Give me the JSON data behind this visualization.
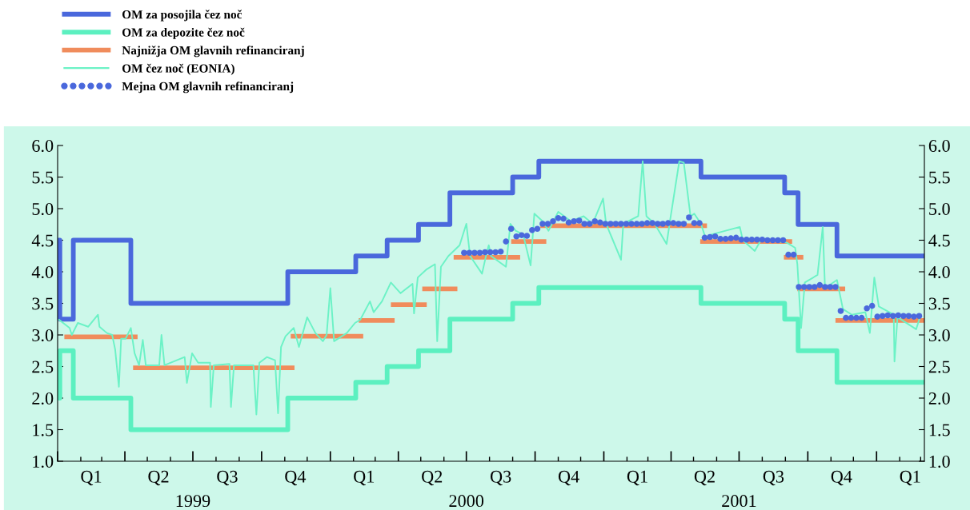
{
  "chart_data": {
    "type": "line",
    "legend": "top left",
    "xlim": [
      "1999-01-01",
      "2002-03-06"
    ],
    "xticks": [
      {
        "value": "1999-01-01",
        "label": null
      },
      {
        "value": "1999-02-01",
        "label": null
      },
      {
        "value": "1999-03-01",
        "label": null
      },
      {
        "value": "1999-04-01",
        "label": null
      },
      {
        "value": "1999-05-01",
        "label": null
      },
      {
        "value": "1999-06-01",
        "label": null
      },
      {
        "value": "1999-07-01",
        "label": null
      },
      {
        "value": "1999-08-01",
        "label": null
      },
      {
        "value": "1999-09-01",
        "label": null
      },
      {
        "value": "1999-10-01",
        "label": null
      },
      {
        "value": "1999-11-01",
        "label": null
      },
      {
        "value": "1999-12-01",
        "label": null
      },
      {
        "value": "2000-01-01",
        "label": null
      },
      {
        "value": "2000-02-01",
        "label": null
      },
      {
        "value": "2000-03-01",
        "label": null
      },
      {
        "value": "2000-04-01",
        "label": null
      },
      {
        "value": "2000-05-01",
        "label": null
      },
      {
        "value": "2000-06-01",
        "label": null
      },
      {
        "value": "2000-07-01",
        "label": null
      },
      {
        "value": "2000-08-01",
        "label": null
      },
      {
        "value": "2000-09-01",
        "label": null
      },
      {
        "value": "2000-10-01",
        "label": null
      },
      {
        "value": "2000-11-01",
        "label": null
      },
      {
        "value": "2000-12-01",
        "label": null
      },
      {
        "value": "2001-01-01",
        "label": null
      },
      {
        "value": "2001-02-01",
        "label": null
      },
      {
        "value": "2001-03-01",
        "label": null
      },
      {
        "value": "2001-04-01",
        "label": null
      },
      {
        "value": "2001-05-01",
        "label": null
      },
      {
        "value": "2001-06-01",
        "label": null
      },
      {
        "value": "2001-07-01",
        "label": null
      },
      {
        "value": "2001-08-01",
        "label": null
      },
      {
        "value": "2001-09-01",
        "label": null
      },
      {
        "value": "2001-10-01",
        "label": null
      },
      {
        "value": "2001-11-01",
        "label": null
      },
      {
        "value": "2001-12-01",
        "label": null
      },
      {
        "value": "2002-01-01",
        "label": null
      },
      {
        "value": "2002-02-01",
        "label": null
      },
      {
        "value": "2002-03-01",
        "label": null
      },
      {
        "value": "1999-02-15",
        "label": "Q1"
      },
      {
        "value": "1999-05-16",
        "label": "Q2"
      },
      {
        "value": "1999-08-16",
        "label": "Q3"
      },
      {
        "value": "1999-11-15",
        "label": "Q4"
      },
      {
        "value": "2000-02-15",
        "label": "Q1"
      },
      {
        "value": "2000-05-16",
        "label": "Q2"
      },
      {
        "value": "2000-08-16",
        "label": "Q3"
      },
      {
        "value": "2000-11-15",
        "label": "Q4"
      },
      {
        "value": "2001-02-15",
        "label": "Q1"
      },
      {
        "value": "2001-05-16",
        "label": "Q2"
      },
      {
        "value": "2001-08-16",
        "label": "Q3"
      },
      {
        "value": "2001-11-15",
        "label": "Q4"
      },
      {
        "value": "2002-02-15",
        "label": "Q1"
      }
    ],
    "ylim": [
      1,
      6
    ],
    "yticks": [
      {
        "value": 1,
        "label": "1.0"
      },
      {
        "value": 1.5,
        "label": "1.5"
      },
      {
        "value": 2,
        "label": "2.0"
      },
      {
        "value": 2.5,
        "label": "2.5"
      },
      {
        "value": 3,
        "label": "3.0"
      },
      {
        "value": 3.5,
        "label": "3.5"
      },
      {
        "value": 4,
        "label": "4.0"
      },
      {
        "value": 4.5,
        "label": "4.5"
      },
      {
        "value": 5,
        "label": "5.0"
      },
      {
        "value": 5.5,
        "label": "5.5"
      },
      {
        "value": 6,
        "label": "6.0"
      }
    ],
    "y2lim": [
      1,
      6
    ],
    "y2ticks": [
      {
        "value": 1,
        "label": "1.0"
      },
      {
        "value": 1.5,
        "label": "1.5"
      },
      {
        "value": 2,
        "label": "2.0"
      },
      {
        "value": 2.5,
        "label": "2.5"
      },
      {
        "value": 3,
        "label": "3.0"
      },
      {
        "value": 3.5,
        "label": "3.5"
      },
      {
        "value": 4,
        "label": "4.0"
      },
      {
        "value": 4.5,
        "label": "4.5"
      },
      {
        "value": 5,
        "label": "5.0"
      },
      {
        "value": 5.5,
        "label": "5.5"
      },
      {
        "value": 6,
        "label": "6.0"
      }
    ],
    "annotations": [
      "1999",
      "2000",
      "2001"
    ],
    "series": [
      {
        "name": "OM za posojila čez noč",
        "type": "step",
        "color": "#4a68dc",
        "x": [
          "1999-01-01",
          "1999-01-04",
          "1999-01-22",
          "1999-04-09",
          "1999-11-05",
          "2000-02-04",
          "2000-03-17",
          "2000-04-28",
          "2000-06-09",
          "2000-09-01",
          "2000-10-06",
          "2001-05-11",
          "2001-08-31",
          "2001-09-18",
          "2001-11-09",
          "2002-03-06"
        ],
        "values": [
          4.5,
          3.25,
          4.5,
          3.5,
          4.0,
          4.25,
          4.5,
          4.75,
          5.25,
          5.5,
          5.75,
          5.5,
          5.25,
          4.75,
          4.25,
          4.25
        ]
      },
      {
        "name": "OM za depozite čez noč",
        "type": "step",
        "color": "#5cf0c0",
        "x": [
          "1999-01-01",
          "1999-01-04",
          "1999-01-22",
          "1999-04-09",
          "1999-11-05",
          "2000-02-04",
          "2000-03-17",
          "2000-04-28",
          "2000-06-09",
          "2000-09-01",
          "2000-10-06",
          "2001-05-11",
          "2001-08-31",
          "2001-09-18",
          "2001-11-09",
          "2002-03-06"
        ],
        "values": [
          2.0,
          2.75,
          2.0,
          1.5,
          2.0,
          2.25,
          2.5,
          2.75,
          3.25,
          3.5,
          3.75,
          3.5,
          3.25,
          2.75,
          2.25,
          2.25
        ]
      },
      {
        "name": "Najnižja OM glavnih refinanciranj",
        "type": "step",
        "color": "#f08c5c",
        "x": [
          "1999-01-10",
          "1999-04-18"
        ],
        "values": [
          2.97,
          2.97
        ]
      },
      {
        "type": "step",
        "color": "#f08c5c",
        "x": [
          "1999-04-12",
          "1999-11-14"
        ],
        "values": [
          2.48,
          2.48
        ]
      },
      {
        "type": "step",
        "color": "#f08c5c",
        "x": [
          "1999-11-09",
          "2000-02-14"
        ],
        "values": [
          2.98,
          2.98
        ]
      },
      {
        "type": "step",
        "color": "#f08c5c",
        "x": [
          "2000-02-08",
          "2000-03-27"
        ],
        "values": [
          3.23,
          3.23
        ]
      },
      {
        "type": "step",
        "color": "#f08c5c",
        "x": [
          "2000-03-22",
          "2000-05-09"
        ],
        "values": [
          3.48,
          3.48
        ]
      },
      {
        "type": "step",
        "color": "#f08c5c",
        "x": [
          "2000-05-03",
          "2000-06-19"
        ],
        "values": [
          3.73,
          3.73
        ]
      },
      {
        "type": "step",
        "color": "#f08c5c",
        "x": [
          "2000-06-14",
          "2000-09-11"
        ],
        "values": [
          4.23,
          4.23
        ]
      },
      {
        "type": "step",
        "color": "#f08c5c",
        "x": [
          "2000-08-30",
          "2000-10-16"
        ],
        "values": [
          4.48,
          4.48
        ]
      },
      {
        "type": "step",
        "color": "#f08c5c",
        "x": [
          "2000-10-08",
          "2001-05-19"
        ],
        "values": [
          4.73,
          4.73
        ]
      },
      {
        "type": "step",
        "color": "#f08c5c",
        "x": [
          "2001-05-10",
          "2001-09-10"
        ],
        "values": [
          4.48,
          4.48
        ]
      },
      {
        "type": "step",
        "color": "#f08c5c",
        "x": [
          "2001-08-30",
          "2001-09-25"
        ],
        "values": [
          4.23,
          4.23
        ]
      },
      {
        "type": "step",
        "color": "#f08c5c",
        "x": [
          "2001-09-17",
          "2001-11-20"
        ],
        "values": [
          3.73,
          3.73
        ]
      },
      {
        "type": "step",
        "color": "#f08c5c",
        "x": [
          "2001-11-07",
          "2002-03-06"
        ],
        "values": [
          3.23,
          3.23
        ]
      },
      {
        "name": "OM čez noč (EONIA)",
        "type": "line",
        "color": "#6cf2c6",
        "x": [
          "1999-01-03",
          "1999-01-17",
          "1999-01-20",
          "1999-01-28",
          "1999-02-11",
          "1999-02-24",
          "1999-02-26",
          "1999-03-08",
          "1999-03-15",
          "1999-03-19",
          "1999-03-24",
          "1999-03-27",
          "1999-04-02",
          "1999-04-09",
          "1999-04-14",
          "1999-04-20",
          "1999-04-25",
          "1999-04-29",
          "1999-05-17",
          "1999-05-20",
          "1999-05-24",
          "1999-06-20",
          "1999-06-23",
          "1999-06-30",
          "1999-07-08",
          "1999-07-24",
          "1999-07-25",
          "1999-07-29",
          "1999-08-19",
          "1999-08-21",
          "1999-08-25",
          "1999-09-20",
          "1999-09-24",
          "1999-09-28",
          "1999-10-08",
          "1999-10-19",
          "1999-10-23",
          "1999-10-27",
          "1999-11-02",
          "1999-11-13",
          "1999-11-20",
          "1999-12-01",
          "1999-12-12",
          "1999-12-22",
          "1999-12-27",
          "2000-01-01",
          "2000-01-06",
          "2000-01-23",
          "2000-02-03",
          "2000-02-10",
          "2000-02-23",
          "2000-02-28",
          "2000-03-10",
          "2000-03-22",
          "2000-04-04",
          "2000-04-20",
          "2000-04-22",
          "2000-04-27",
          "2000-05-09",
          "2000-05-20",
          "2000-05-23",
          "2000-05-28",
          "2000-06-07",
          "2000-06-14",
          "2000-06-22",
          "2000-07-01",
          "2000-07-06",
          "2000-07-22",
          "2000-07-28",
          "2000-07-31",
          "2000-08-03",
          "2000-08-23",
          "2000-08-29",
          "2000-09-05",
          "2000-09-15",
          "2000-09-25",
          "2000-09-30",
          "2000-10-11",
          "2000-10-19",
          "2000-11-01",
          "2000-11-18",
          "2000-12-05",
          "2000-12-17",
          "2000-12-31",
          "2001-01-04",
          "2001-01-24",
          "2001-01-27",
          "2001-02-16",
          "2001-02-22",
          "2001-02-27",
          "2001-03-10",
          "2001-03-26",
          "2001-03-31",
          "2001-04-12",
          "2001-04-18",
          "2001-04-27",
          "2001-05-02",
          "2001-05-11",
          "2001-05-17",
          "2001-05-25",
          "2001-07-02",
          "2001-07-06",
          "2001-07-22",
          "2001-07-31",
          "2001-09-03",
          "2001-09-14",
          "2001-09-17",
          "2001-09-22",
          "2001-09-27",
          "2001-10-14",
          "2001-10-21",
          "2001-10-24",
          "2001-11-09",
          "2001-11-17",
          "2001-11-29",
          "2001-12-17",
          "2001-12-23",
          "2001-12-29",
          "2002-01-04",
          "2002-01-24",
          "2002-01-25",
          "2002-01-29",
          "2002-02-23",
          "2002-02-28"
        ],
        "values": [
          3.24,
          3.11,
          3.0,
          3.19,
          3.13,
          3.32,
          3.13,
          3.03,
          3.0,
          2.77,
          2.18,
          2.94,
          2.94,
          3.11,
          2.71,
          2.52,
          2.92,
          2.52,
          2.52,
          3.0,
          2.52,
          2.65,
          2.24,
          2.71,
          2.56,
          2.56,
          1.86,
          2.52,
          2.54,
          1.86,
          2.52,
          2.52,
          1.74,
          2.56,
          2.65,
          2.6,
          1.76,
          2.81,
          2.98,
          3.11,
          2.81,
          3.28,
          3.03,
          2.9,
          3.0,
          3.74,
          2.9,
          3.03,
          3.19,
          3.24,
          3.53,
          3.36,
          3.53,
          3.83,
          3.66,
          3.81,
          3.34,
          3.91,
          4.04,
          4.12,
          2.9,
          4.08,
          4.25,
          4.33,
          4.42,
          4.76,
          4.25,
          3.97,
          4.29,
          4.42,
          4.25,
          4.08,
          4.76,
          4.65,
          4.59,
          4.1,
          4.92,
          4.8,
          4.65,
          4.95,
          4.8,
          4.88,
          4.76,
          5.16,
          4.76,
          4.19,
          4.76,
          4.88,
          5.75,
          4.88,
          4.76,
          4.44,
          4.84,
          5.75,
          5.73,
          4.88,
          4.92,
          4.76,
          4.54,
          4.59,
          4.71,
          4.5,
          4.33,
          4.52,
          4.46,
          4.38,
          4.12,
          3.11,
          3.83,
          3.95,
          4.71,
          3.74,
          3.87,
          3.41,
          3.32,
          3.36,
          3.03,
          3.91,
          3.45,
          3.32,
          2.58,
          3.28,
          3.09,
          3.28
        ]
      },
      {
        "name": "Mejna OM glavnih refinanciranj",
        "type": "scatter",
        "marker": "circle",
        "color": "#4a68dc",
        "x": [
          "2000-06-28",
          "2000-07-05",
          "2000-07-12",
          "2000-07-19",
          "2000-07-26",
          "2000-08-02",
          "2000-08-09",
          "2000-08-16",
          "2000-08-23",
          "2000-08-30",
          "2000-09-06",
          "2000-09-13",
          "2000-09-20",
          "2000-09-27",
          "2000-10-04",
          "2000-10-11",
          "2000-10-18",
          "2000-10-25",
          "2000-11-01",
          "2000-11-08",
          "2000-11-15",
          "2000-11-22",
          "2000-11-29",
          "2000-12-06",
          "2000-12-13",
          "2000-12-20",
          "2000-12-27",
          "2001-01-03",
          "2001-01-10",
          "2001-01-17",
          "2001-01-24",
          "2001-01-31",
          "2001-02-07",
          "2001-02-14",
          "2001-02-21",
          "2001-02-28",
          "2001-03-07",
          "2001-03-14",
          "2001-03-21",
          "2001-03-28",
          "2001-04-04",
          "2001-04-11",
          "2001-04-18",
          "2001-04-25",
          "2001-05-02",
          "2001-05-09",
          "2001-05-16",
          "2001-05-23",
          "2001-05-30",
          "2001-06-06",
          "2001-06-13",
          "2001-06-20",
          "2001-06-27",
          "2001-07-04",
          "2001-07-11",
          "2001-07-18",
          "2001-07-25",
          "2001-08-01",
          "2001-08-08",
          "2001-08-15",
          "2001-08-22",
          "2001-08-29",
          "2001-09-05",
          "2001-09-12",
          "2001-09-19",
          "2001-09-26",
          "2001-10-03",
          "2001-10-10",
          "2001-10-17",
          "2001-10-24",
          "2001-10-31",
          "2001-11-07",
          "2001-11-14",
          "2001-11-21",
          "2001-11-28",
          "2001-12-05",
          "2001-12-12",
          "2001-12-19",
          "2001-12-26",
          "2002-01-02",
          "2002-01-09",
          "2002-01-16",
          "2002-01-23",
          "2002-01-30",
          "2002-02-06",
          "2002-02-13",
          "2002-02-20",
          "2002-02-27"
        ],
        "values": [
          4.3,
          4.3,
          4.3,
          4.3,
          4.31,
          4.31,
          4.31,
          4.32,
          4.48,
          4.68,
          4.56,
          4.58,
          4.57,
          4.66,
          4.68,
          4.76,
          4.76,
          4.8,
          4.85,
          4.84,
          4.78,
          4.8,
          4.81,
          4.76,
          4.76,
          4.8,
          4.78,
          4.76,
          4.76,
          4.76,
          4.76,
          4.76,
          4.76,
          4.76,
          4.76,
          4.77,
          4.77,
          4.76,
          4.76,
          4.77,
          4.77,
          4.76,
          4.76,
          4.86,
          4.77,
          4.77,
          4.54,
          4.55,
          4.56,
          4.52,
          4.52,
          4.53,
          4.54,
          4.51,
          4.51,
          4.51,
          4.51,
          4.51,
          4.5,
          4.5,
          4.5,
          4.5,
          4.27,
          4.27,
          3.76,
          3.76,
          3.76,
          3.76,
          3.79,
          3.76,
          3.76,
          3.76,
          3.38,
          3.27,
          3.27,
          3.27,
          3.27,
          3.42,
          3.46,
          3.29,
          3.3,
          3.31,
          3.3,
          3.31,
          3.3,
          3.3,
          3.29,
          3.3
        ]
      }
    ]
  }
}
